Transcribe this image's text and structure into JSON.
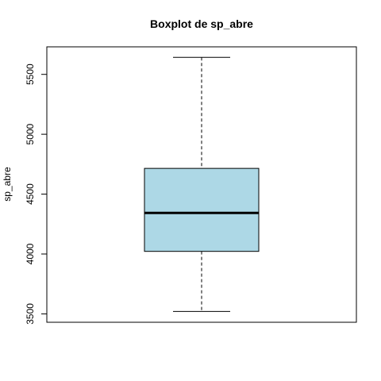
{
  "chart_data": {
    "type": "boxplot",
    "title": "Boxplot de sp_abre",
    "xlabel": "",
    "ylabel": "sp_abre",
    "ylim": [
      3430,
      5730
    ],
    "yticks": [
      3500,
      4000,
      4500,
      5000,
      5500
    ],
    "grid": false,
    "legend": "none",
    "box": {
      "min": 3520,
      "q1": 4022,
      "median": 4343,
      "q3": 4715,
      "max": 5642,
      "fill": "#ADD8E6",
      "stroke": "#000000"
    }
  }
}
